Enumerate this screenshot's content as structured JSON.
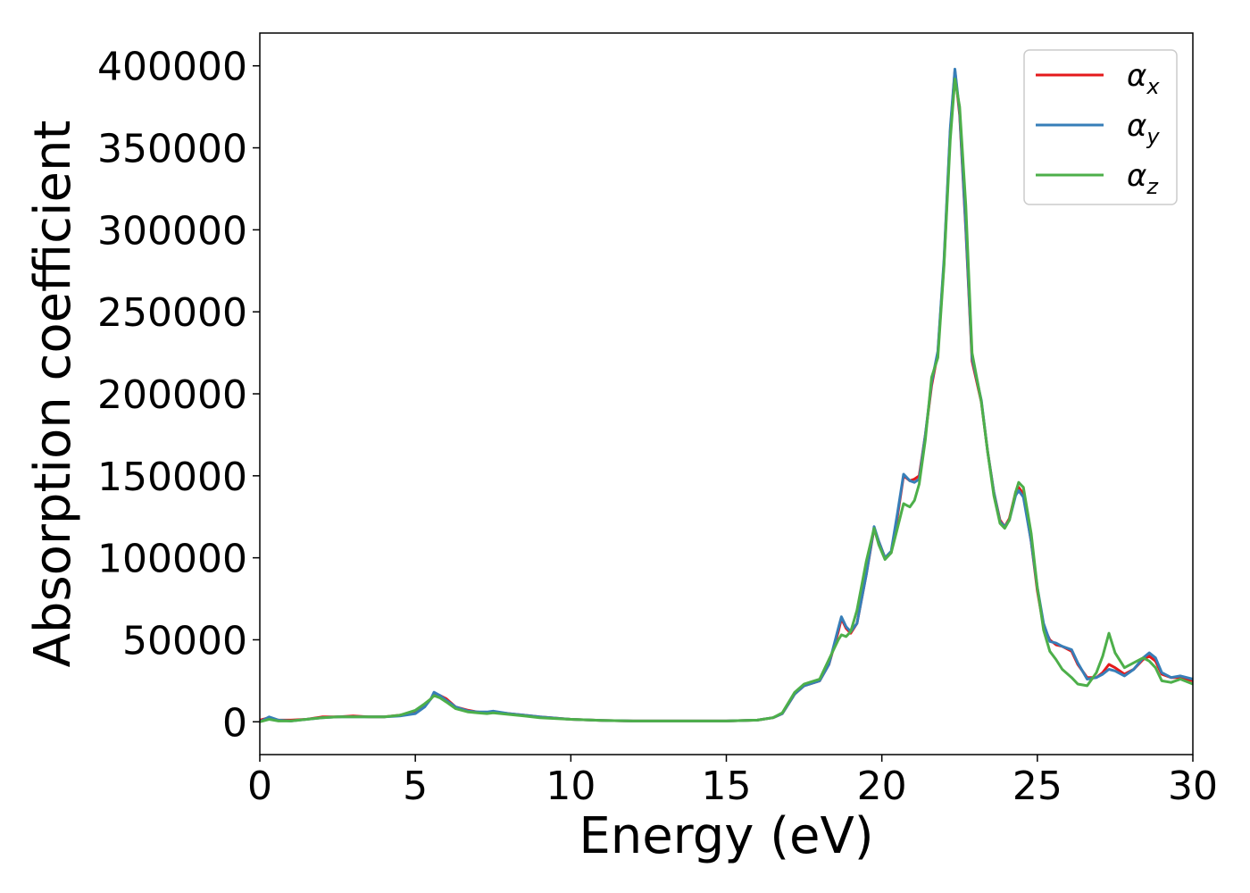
{
  "chart_data": {
    "type": "line",
    "title": "",
    "xlabel": "Energy (eV)",
    "ylabel": "Absorption coefficient",
    "xlim": [
      0,
      30
    ],
    "ylim": [
      -20000,
      420000
    ],
    "xticks": [
      0,
      5,
      10,
      15,
      20,
      25,
      30
    ],
    "yticks": [
      0,
      50000,
      100000,
      150000,
      200000,
      250000,
      300000,
      350000,
      400000
    ],
    "grid": false,
    "legend_position": "top-right",
    "series": [
      {
        "name": "α_x",
        "base": "α",
        "sub": "x",
        "color": "#e41a1c",
        "points": [
          [
            0,
            1000
          ],
          [
            0.3,
            2500
          ],
          [
            0.6,
            1000
          ],
          [
            1,
            1000
          ],
          [
            1.5,
            1500
          ],
          [
            2,
            3000
          ],
          [
            2.5,
            3000
          ],
          [
            3,
            3500
          ],
          [
            3.5,
            3000
          ],
          [
            4,
            3000
          ],
          [
            4.5,
            4000
          ],
          [
            5,
            6000
          ],
          [
            5.3,
            10000
          ],
          [
            5.5,
            14000
          ],
          [
            5.6,
            17000
          ],
          [
            5.8,
            16000
          ],
          [
            6,
            14000
          ],
          [
            6.3,
            9000
          ],
          [
            6.7,
            7000
          ],
          [
            7,
            6000
          ],
          [
            7.3,
            5500
          ],
          [
            7.5,
            6000
          ],
          [
            8,
            5000
          ],
          [
            8.5,
            4000
          ],
          [
            9,
            3000
          ],
          [
            10,
            1500
          ],
          [
            11,
            800
          ],
          [
            12,
            500
          ],
          [
            13,
            500
          ],
          [
            14,
            500
          ],
          [
            15,
            500
          ],
          [
            16,
            1000
          ],
          [
            16.5,
            2500
          ],
          [
            16.8,
            5000
          ],
          [
            17.2,
            17000
          ],
          [
            17.5,
            22000
          ],
          [
            18,
            25000
          ],
          [
            18.3,
            35000
          ],
          [
            18.6,
            55000
          ],
          [
            18.7,
            63000
          ],
          [
            18.85,
            57000
          ],
          [
            19,
            54000
          ],
          [
            19.2,
            60000
          ],
          [
            19.5,
            90000
          ],
          [
            19.75,
            118000
          ],
          [
            19.9,
            110000
          ],
          [
            20.1,
            100000
          ],
          [
            20.3,
            103000
          ],
          [
            20.5,
            125000
          ],
          [
            20.7,
            150000
          ],
          [
            20.9,
            147000
          ],
          [
            21.05,
            148000
          ],
          [
            21.2,
            150000
          ],
          [
            21.4,
            175000
          ],
          [
            21.6,
            205000
          ],
          [
            21.8,
            225000
          ],
          [
            22,
            280000
          ],
          [
            22.2,
            360000
          ],
          [
            22.35,
            397000
          ],
          [
            22.5,
            370000
          ],
          [
            22.7,
            300000
          ],
          [
            22.9,
            220000
          ],
          [
            23.2,
            195000
          ],
          [
            23.4,
            165000
          ],
          [
            23.6,
            140000
          ],
          [
            23.8,
            123000
          ],
          [
            23.95,
            119000
          ],
          [
            24.1,
            124000
          ],
          [
            24.3,
            140000
          ],
          [
            24.4,
            143000
          ],
          [
            24.55,
            139000
          ],
          [
            24.8,
            110000
          ],
          [
            25,
            80000
          ],
          [
            25.2,
            58000
          ],
          [
            25.4,
            50000
          ],
          [
            25.6,
            47000
          ],
          [
            25.8,
            46000
          ],
          [
            26.1,
            43000
          ],
          [
            26.3,
            35000
          ],
          [
            26.6,
            27000
          ],
          [
            26.9,
            27000
          ],
          [
            27.1,
            30000
          ],
          [
            27.3,
            35000
          ],
          [
            27.5,
            33000
          ],
          [
            27.8,
            29000
          ],
          [
            28.1,
            32000
          ],
          [
            28.4,
            38000
          ],
          [
            28.6,
            40000
          ],
          [
            28.8,
            37000
          ],
          [
            29,
            29000
          ],
          [
            29.3,
            27000
          ],
          [
            29.6,
            27000
          ],
          [
            30,
            25000
          ]
        ]
      },
      {
        "name": "α_y",
        "base": "α",
        "sub": "y",
        "color": "#377eb8",
        "points": [
          [
            0,
            0
          ],
          [
            0.3,
            3000
          ],
          [
            0.6,
            1000
          ],
          [
            1,
            500
          ],
          [
            1.5,
            1500
          ],
          [
            2,
            2500
          ],
          [
            2.5,
            3000
          ],
          [
            3,
            3000
          ],
          [
            3.5,
            3000
          ],
          [
            4,
            3000
          ],
          [
            4.5,
            3500
          ],
          [
            5,
            5000
          ],
          [
            5.3,
            9000
          ],
          [
            5.5,
            14000
          ],
          [
            5.6,
            18000
          ],
          [
            5.8,
            16000
          ],
          [
            6,
            13000
          ],
          [
            6.3,
            9000
          ],
          [
            6.7,
            6500
          ],
          [
            7,
            6000
          ],
          [
            7.3,
            6000
          ],
          [
            7.5,
            6500
          ],
          [
            8,
            5000
          ],
          [
            8.5,
            4000
          ],
          [
            9,
            3000
          ],
          [
            10,
            1500
          ],
          [
            11,
            800
          ],
          [
            12,
            500
          ],
          [
            13,
            500
          ],
          [
            14,
            500
          ],
          [
            15,
            500
          ],
          [
            16,
            1000
          ],
          [
            16.5,
            2500
          ],
          [
            16.8,
            5000
          ],
          [
            17.2,
            17000
          ],
          [
            17.5,
            22000
          ],
          [
            18,
            25000
          ],
          [
            18.3,
            35000
          ],
          [
            18.6,
            57000
          ],
          [
            18.7,
            64000
          ],
          [
            18.85,
            58000
          ],
          [
            19,
            55000
          ],
          [
            19.2,
            60000
          ],
          [
            19.5,
            90000
          ],
          [
            19.75,
            119000
          ],
          [
            19.9,
            110000
          ],
          [
            20.1,
            100000
          ],
          [
            20.3,
            104000
          ],
          [
            20.5,
            127000
          ],
          [
            20.7,
            151000
          ],
          [
            20.9,
            147000
          ],
          [
            21.05,
            146000
          ],
          [
            21.2,
            148000
          ],
          [
            21.4,
            175000
          ],
          [
            21.6,
            207000
          ],
          [
            21.8,
            226000
          ],
          [
            22,
            282000
          ],
          [
            22.2,
            362000
          ],
          [
            22.35,
            398000
          ],
          [
            22.5,
            372000
          ],
          [
            22.7,
            302000
          ],
          [
            22.9,
            222000
          ],
          [
            23.2,
            196000
          ],
          [
            23.4,
            165000
          ],
          [
            23.6,
            140000
          ],
          [
            23.8,
            122000
          ],
          [
            23.95,
            119000
          ],
          [
            24.1,
            123000
          ],
          [
            24.3,
            138000
          ],
          [
            24.4,
            141000
          ],
          [
            24.55,
            137000
          ],
          [
            24.8,
            110000
          ],
          [
            25,
            82000
          ],
          [
            25.2,
            60000
          ],
          [
            25.4,
            49000
          ],
          [
            25.6,
            48000
          ],
          [
            25.8,
            46000
          ],
          [
            26.1,
            44000
          ],
          [
            26.3,
            36000
          ],
          [
            26.6,
            26000
          ],
          [
            26.9,
            27000
          ],
          [
            27.1,
            29000
          ],
          [
            27.3,
            32000
          ],
          [
            27.5,
            31000
          ],
          [
            27.8,
            28000
          ],
          [
            28.1,
            32000
          ],
          [
            28.4,
            39000
          ],
          [
            28.6,
            42000
          ],
          [
            28.8,
            39000
          ],
          [
            29,
            30000
          ],
          [
            29.3,
            27000
          ],
          [
            29.6,
            28000
          ],
          [
            30,
            26000
          ]
        ]
      },
      {
        "name": "α_z",
        "base": "α",
        "sub": "z",
        "color": "#4daf4a",
        "points": [
          [
            0,
            0
          ],
          [
            0.3,
            1500
          ],
          [
            0.6,
            500
          ],
          [
            1,
            500
          ],
          [
            1.5,
            1500
          ],
          [
            2,
            2500
          ],
          [
            2.5,
            3000
          ],
          [
            3,
            3000
          ],
          [
            3.5,
            3000
          ],
          [
            4,
            3000
          ],
          [
            4.5,
            4000
          ],
          [
            5,
            7000
          ],
          [
            5.3,
            11000
          ],
          [
            5.5,
            14000
          ],
          [
            5.6,
            16000
          ],
          [
            5.8,
            14500
          ],
          [
            6,
            12000
          ],
          [
            6.3,
            8000
          ],
          [
            6.7,
            6000
          ],
          [
            7,
            5500
          ],
          [
            7.3,
            5000
          ],
          [
            7.5,
            5500
          ],
          [
            8,
            4500
          ],
          [
            8.5,
            3500
          ],
          [
            9,
            2500
          ],
          [
            10,
            1500
          ],
          [
            11,
            800
          ],
          [
            12,
            500
          ],
          [
            13,
            500
          ],
          [
            14,
            500
          ],
          [
            15,
            500
          ],
          [
            16,
            1000
          ],
          [
            16.5,
            2500
          ],
          [
            16.8,
            5500
          ],
          [
            17.2,
            18000
          ],
          [
            17.5,
            23000
          ],
          [
            18,
            26000
          ],
          [
            18.3,
            38000
          ],
          [
            18.6,
            50000
          ],
          [
            18.7,
            53000
          ],
          [
            18.85,
            52000
          ],
          [
            19,
            55000
          ],
          [
            19.2,
            68000
          ],
          [
            19.5,
            98000
          ],
          [
            19.75,
            118000
          ],
          [
            19.9,
            108000
          ],
          [
            20.1,
            99000
          ],
          [
            20.3,
            103000
          ],
          [
            20.5,
            118000
          ],
          [
            20.7,
            133000
          ],
          [
            20.9,
            131000
          ],
          [
            21.05,
            135000
          ],
          [
            21.2,
            145000
          ],
          [
            21.4,
            172000
          ],
          [
            21.6,
            210000
          ],
          [
            21.8,
            222000
          ],
          [
            22,
            278000
          ],
          [
            22.2,
            355000
          ],
          [
            22.35,
            392000
          ],
          [
            22.5,
            375000
          ],
          [
            22.7,
            315000
          ],
          [
            22.9,
            225000
          ],
          [
            23.2,
            195000
          ],
          [
            23.4,
            165000
          ],
          [
            23.6,
            138000
          ],
          [
            23.8,
            121000
          ],
          [
            23.95,
            118000
          ],
          [
            24.1,
            123000
          ],
          [
            24.3,
            140000
          ],
          [
            24.4,
            146000
          ],
          [
            24.55,
            143000
          ],
          [
            24.8,
            115000
          ],
          [
            25,
            82000
          ],
          [
            25.2,
            56000
          ],
          [
            25.4,
            43000
          ],
          [
            25.6,
            38000
          ],
          [
            25.8,
            32000
          ],
          [
            26.1,
            27000
          ],
          [
            26.3,
            23000
          ],
          [
            26.6,
            22000
          ],
          [
            26.9,
            30000
          ],
          [
            27.1,
            40000
          ],
          [
            27.3,
            54000
          ],
          [
            27.5,
            42000
          ],
          [
            27.8,
            33000
          ],
          [
            28.1,
            36000
          ],
          [
            28.4,
            39000
          ],
          [
            28.6,
            37000
          ],
          [
            28.8,
            33000
          ],
          [
            29,
            25000
          ],
          [
            29.3,
            24000
          ],
          [
            29.6,
            26000
          ],
          [
            30,
            23000
          ]
        ]
      }
    ]
  }
}
